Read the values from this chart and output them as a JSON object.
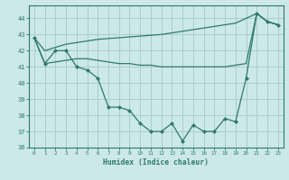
{
  "x": [
    0,
    1,
    2,
    3,
    4,
    5,
    6,
    7,
    8,
    9,
    10,
    11,
    12,
    13,
    14,
    15,
    16,
    17,
    18,
    19,
    20,
    21,
    22,
    23
  ],
  "line_main": [
    42.8,
    41.2,
    42.0,
    42.0,
    41.0,
    40.8,
    40.3,
    38.5,
    38.5,
    38.3,
    37.5,
    37.0,
    37.0,
    37.5,
    36.4,
    37.4,
    37.0,
    37.0,
    37.8,
    37.6,
    40.3,
    44.3,
    43.8,
    43.6
  ],
  "line_upper": [
    42.8,
    42.0,
    42.2,
    42.4,
    42.5,
    42.6,
    42.7,
    42.75,
    42.8,
    42.85,
    42.9,
    42.95,
    43.0,
    43.1,
    43.2,
    43.3,
    43.4,
    43.5,
    43.6,
    43.7,
    44.0,
    44.3,
    43.8,
    43.6
  ],
  "line_lower": [
    42.8,
    41.2,
    41.3,
    41.4,
    41.5,
    41.5,
    41.4,
    41.3,
    41.2,
    41.2,
    41.1,
    41.1,
    41.0,
    41.0,
    41.0,
    41.0,
    41.0,
    41.0,
    41.0,
    41.1,
    41.2,
    44.3,
    43.8,
    43.6
  ],
  "color": "#2d7a6e",
  "bg_color": "#cce8e8",
  "grid_color": "#aacece",
  "xlabel": "Humidex (Indice chaleur)",
  "ylim": [
    36,
    44.8
  ],
  "xlim_min": -0.5,
  "xlim_max": 23.5,
  "yticks": [
    36,
    37,
    38,
    39,
    40,
    41,
    42,
    43,
    44
  ],
  "xticks": [
    0,
    1,
    2,
    3,
    4,
    5,
    6,
    7,
    8,
    9,
    10,
    11,
    12,
    13,
    14,
    15,
    16,
    17,
    18,
    19,
    20,
    21,
    22,
    23
  ]
}
